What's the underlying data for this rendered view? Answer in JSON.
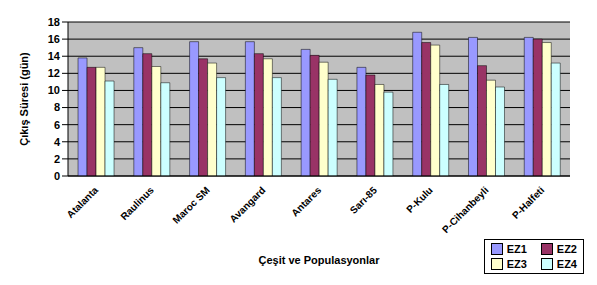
{
  "chart_data": {
    "type": "bar",
    "x_label": "Çeşit ve Populasyonlar",
    "y_label": "Çıkış Süresi (gün)",
    "categories": [
      "Atalanta",
      "Raulinus",
      "Maroc SM",
      "Avangard",
      "Antares",
      "Sarı-85",
      "P-Kulu",
      "P-Cihanbeyli",
      "P-Halfeti"
    ],
    "series": [
      {
        "name": "EZ1",
        "color": "#9999FF",
        "values": [
          13.8,
          15.0,
          15.7,
          15.7,
          14.8,
          12.7,
          16.8,
          16.2,
          16.2
        ]
      },
      {
        "name": "EZ2",
        "color": "#993366",
        "values": [
          12.7,
          14.3,
          13.7,
          14.3,
          14.1,
          11.8,
          15.6,
          12.9,
          16.0
        ]
      },
      {
        "name": "EZ3",
        "color": "#FFFFCC",
        "values": [
          12.7,
          12.8,
          13.2,
          13.7,
          13.3,
          10.7,
          15.3,
          11.2,
          15.6
        ]
      },
      {
        "name": "EZ4",
        "color": "#CCFFFF",
        "values": [
          11.1,
          10.9,
          11.5,
          11.5,
          11.3,
          9.8,
          10.7,
          10.4,
          13.2
        ]
      }
    ],
    "ylim": [
      0,
      18
    ],
    "yticks": [
      0,
      2,
      4,
      6,
      8,
      10,
      12,
      14,
      16,
      18
    ],
    "grid": true,
    "legend": "lower right"
  }
}
